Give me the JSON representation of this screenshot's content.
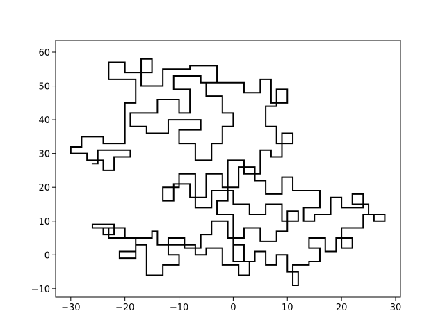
{
  "chart_data": {
    "type": "line",
    "x": [
      0,
      0,
      2,
      2,
      4,
      4,
      6,
      6,
      8,
      8,
      10,
      10,
      12,
      12,
      11,
      11,
      14,
      14,
      16,
      16,
      14,
      14,
      17,
      17,
      19,
      19,
      22,
      22,
      20,
      20,
      24,
      24,
      26,
      26,
      28,
      28,
      25,
      25,
      22,
      22,
      24,
      24,
      20,
      20,
      18,
      18,
      15,
      15,
      13,
      13,
      16,
      16,
      11,
      11,
      9,
      9,
      6,
      6,
      4,
      4,
      1,
      1,
      -2,
      -2,
      -5,
      -5,
      -8,
      -8,
      -11,
      -11,
      -13,
      -13,
      -10,
      -10,
      -7,
      -7,
      -4,
      -4,
      0,
      0,
      3,
      3,
      6,
      6,
      9,
      9,
      12,
      12,
      10,
      10,
      8,
      8,
      5,
      5,
      2,
      2,
      -1,
      -1,
      -4,
      -4,
      -6,
      -6,
      -9,
      -9,
      -12,
      -12,
      -10,
      -10,
      -13,
      -13,
      -16,
      -16,
      -18,
      -18,
      -21,
      -21,
      -18,
      -18,
      -20,
      -20,
      -24,
      -24,
      -22,
      -22,
      -26,
      -26,
      -23,
      -23,
      -15,
      -15,
      -14,
      -14,
      -7,
      -7,
      -5,
      -5,
      -2,
      -2,
      1,
      1,
      3,
      3,
      0,
      0,
      -3,
      -3,
      -1,
      -1,
      2,
      2,
      5,
      5,
      7,
      7,
      9,
      9,
      11,
      11,
      8,
      8,
      6,
      6,
      8,
      8,
      10,
      10,
      7,
      7,
      5,
      5,
      2,
      2,
      -5,
      -5,
      -2,
      -2,
      0,
      0,
      -2,
      -2,
      -4,
      -4,
      -7,
      -7,
      -10,
      -10,
      -6,
      -6,
      -12,
      -12,
      -16,
      -16,
      -19,
      -19,
      -14,
      -14,
      -10,
      -10,
      -8,
      -8,
      -11,
      -11,
      -6,
      -6,
      -3,
      -3,
      -8,
      -8,
      -13,
      -13,
      -17,
      -17,
      -15,
      -15,
      -20,
      -20,
      -23,
      -23,
      -18,
      -18,
      -20,
      -20,
      -24,
      -24,
      -28,
      -28,
      -30,
      -30,
      -27,
      -27,
      -24,
      -24,
      -22,
      -22,
      -19,
      -19,
      -25,
      -25,
      -26
    ],
    "series": [
      {
        "color": "#000000",
        "values": [
          0,
          3,
          3,
          -2,
          -2,
          1,
          1,
          -3,
          -3,
          0,
          0,
          -5,
          -5,
          -9,
          -9,
          -3,
          -3,
          -2,
          -2,
          2,
          2,
          5,
          5,
          1,
          1,
          5,
          5,
          2,
          2,
          8,
          8,
          12,
          12,
          10,
          10,
          12,
          12,
          15,
          15,
          18,
          18,
          14,
          14,
          17,
          17,
          12,
          12,
          10,
          10,
          14,
          14,
          19,
          19,
          23,
          23,
          18,
          18,
          22,
          22,
          26,
          26,
          20,
          20,
          24,
          24,
          17,
          17,
          21,
          21,
          16,
          16,
          20,
          20,
          24,
          24,
          14,
          14,
          19,
          19,
          15,
          15,
          12,
          12,
          15,
          15,
          10,
          10,
          13,
          13,
          7,
          7,
          4,
          4,
          8,
          8,
          5,
          5,
          10,
          10,
          6,
          6,
          2,
          2,
          5,
          5,
          0,
          0,
          -3,
          -3,
          -6,
          -6,
          3,
          3,
          -1,
          -1,
          1,
          1,
          5,
          5,
          8,
          8,
          6,
          6,
          9,
          9,
          8,
          8,
          5,
          5,
          7,
          7,
          3,
          3,
          0,
          0,
          2,
          2,
          -3,
          -3,
          -6,
          -6,
          -2,
          -2,
          12,
          12,
          16,
          16,
          28,
          28,
          24,
          24,
          31,
          31,
          29,
          29,
          36,
          36,
          33,
          33,
          38,
          38,
          44,
          44,
          49,
          49,
          45,
          45,
          52,
          52,
          48,
          48,
          51,
          51,
          47,
          47,
          42,
          42,
          38,
          38,
          33,
          33,
          28,
          28,
          33,
          33,
          37,
          37,
          40,
          40,
          36,
          36,
          38,
          38,
          42,
          42,
          46,
          46,
          42,
          42,
          49,
          49,
          53,
          53,
          51,
          51,
          56,
          56,
          55,
          55,
          50,
          50,
          58,
          58,
          54,
          54,
          57,
          57,
          52,
          52,
          45,
          45,
          33,
          33,
          35,
          35,
          32,
          32,
          30,
          30,
          28,
          28,
          25,
          25,
          29,
          29,
          31,
          31,
          27,
          27
        ]
      }
    ],
    "xlim": [
      -32.8,
      30.9
    ],
    "ylim": [
      -12.5,
      63.5
    ],
    "xticks": [
      {
        "value": -30,
        "label": "−30"
      },
      {
        "value": -20,
        "label": "−20"
      },
      {
        "value": -10,
        "label": "−10"
      },
      0,
      10,
      20,
      30
    ],
    "yticks": [
      {
        "value": -10,
        "label": "−10"
      },
      0,
      10,
      20,
      30,
      40,
      50,
      60
    ]
  }
}
